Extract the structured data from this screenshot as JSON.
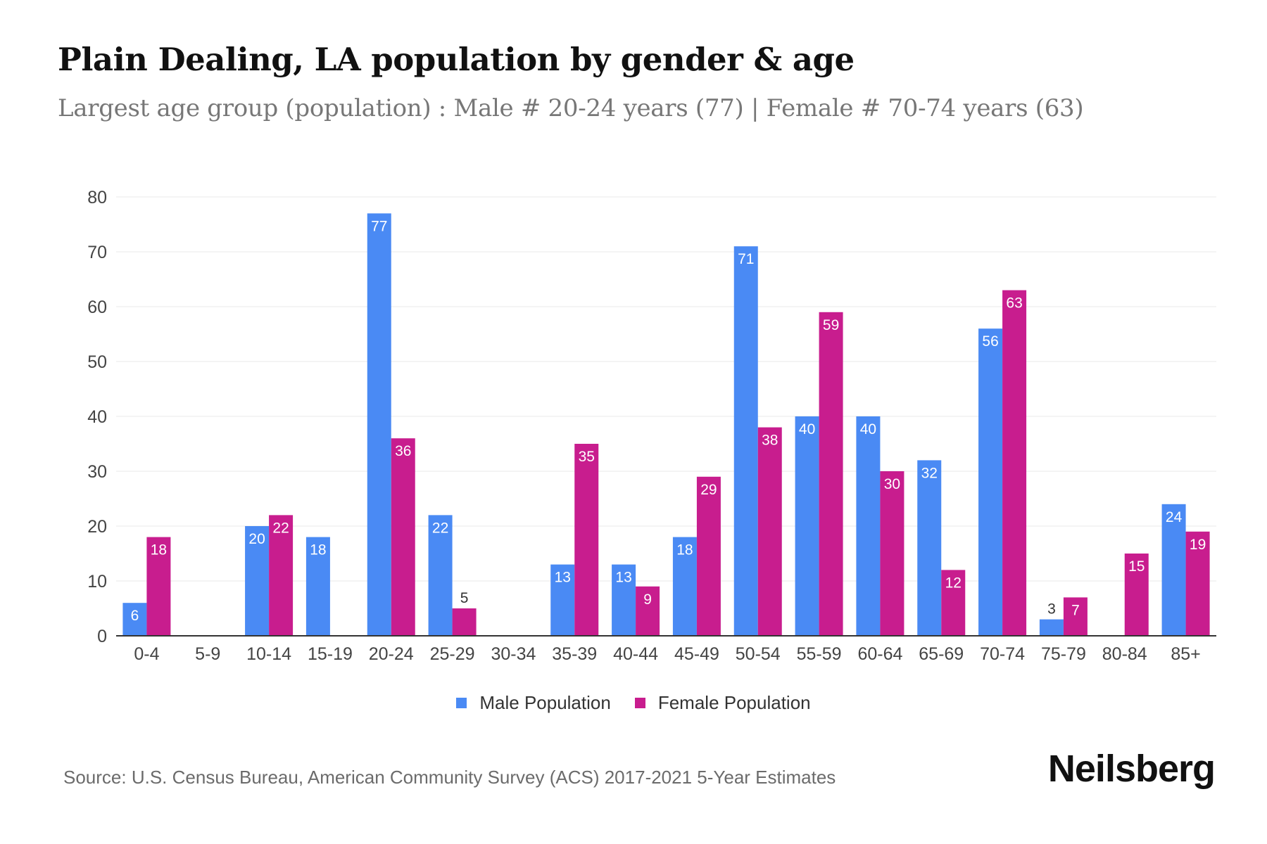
{
  "title": "Plain Dealing, LA population by gender & age",
  "subtitle": "Largest age group (population) : Male # 20-24 years (77) | Female # 70-74 years (63)",
  "source": "Source: U.S. Census Bureau, American Community Survey (ACS) 2017-2021 5-Year Estimates",
  "brand": "Neilsberg",
  "colors": {
    "male": "#4a8af4",
    "female": "#c81d8e",
    "grid": "#e8e8e8",
    "axis": "#333333"
  },
  "chart_data": {
    "type": "bar",
    "title": "Plain Dealing, LA population by gender & age",
    "xlabel": "",
    "ylabel": "",
    "ylim": [
      0,
      80
    ],
    "yticks": [
      0,
      10,
      20,
      30,
      40,
      50,
      60,
      70,
      80
    ],
    "grid": true,
    "legend_position": "bottom-center",
    "categories": [
      "0-4",
      "5-9",
      "10-14",
      "15-19",
      "20-24",
      "25-29",
      "30-34",
      "35-39",
      "40-44",
      "45-49",
      "50-54",
      "55-59",
      "60-64",
      "65-69",
      "70-74",
      "75-79",
      "80-84",
      "85+"
    ],
    "series": [
      {
        "name": "Male Population",
        "color": "#4a8af4",
        "values": [
          6,
          0,
          20,
          18,
          77,
          22,
          0,
          13,
          13,
          18,
          71,
          40,
          40,
          32,
          56,
          3,
          0,
          24
        ]
      },
      {
        "name": "Female Population",
        "color": "#c81d8e",
        "values": [
          18,
          0,
          22,
          0,
          36,
          5,
          0,
          35,
          9,
          29,
          38,
          59,
          30,
          12,
          63,
          7,
          15,
          19
        ]
      }
    ]
  }
}
